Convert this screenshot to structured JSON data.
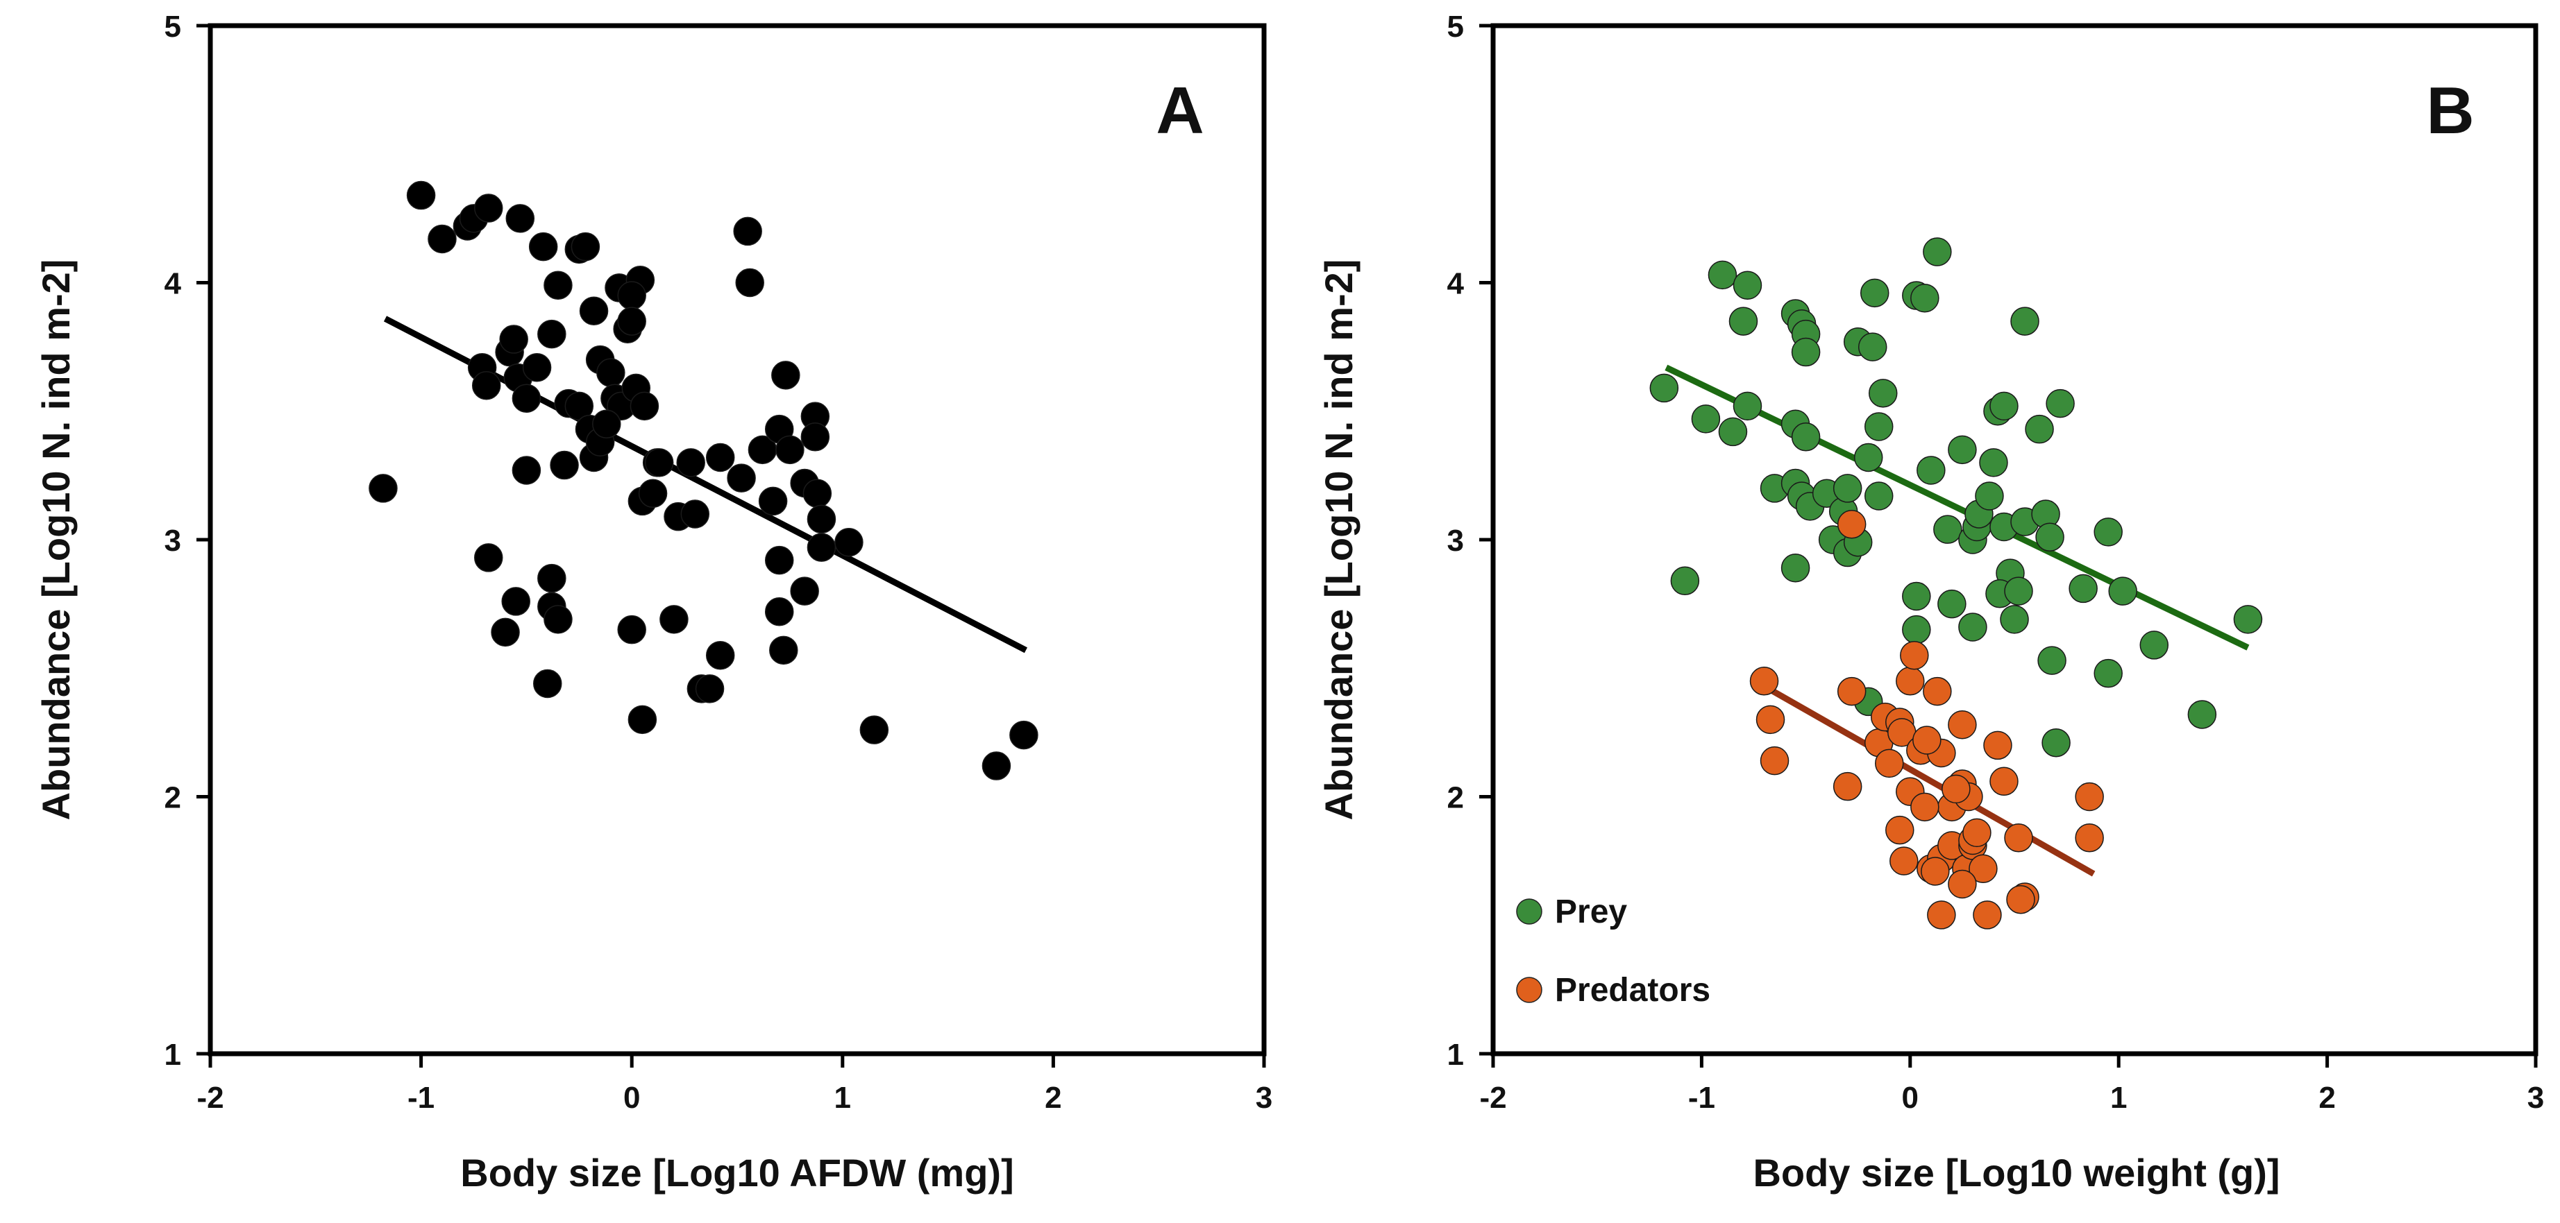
{
  "chart_data": [
    {
      "type": "scatter",
      "panel_label": "A",
      "title": "",
      "xlabel": "Body size [Log10 AFDW (mg)]",
      "ylabel": "Abundance [Log10 N. ind m-2]",
      "xlim": [
        -2,
        3
      ],
      "ylim": [
        1,
        5
      ],
      "xticks": [
        "-2",
        "-1",
        "0",
        "1",
        "2",
        "3"
      ],
      "yticks": [
        "1",
        "2",
        "3",
        "4",
        "5"
      ],
      "colors": {
        "points": "#000000",
        "line": "#000000"
      },
      "series": [
        {
          "points": [
            [
              -1.18,
              3.2
            ],
            [
              -1.0,
              4.34
            ],
            [
              -0.9,
              4.17
            ],
            [
              -0.78,
              4.22
            ],
            [
              -0.75,
              4.25
            ],
            [
              -0.68,
              4.29
            ],
            [
              -0.53,
              4.25
            ],
            [
              -0.42,
              4.14
            ],
            [
              -0.35,
              3.99
            ],
            [
              -0.38,
              3.8
            ],
            [
              -0.25,
              4.13
            ],
            [
              -0.22,
              4.14
            ],
            [
              -0.18,
              3.89
            ],
            [
              -0.06,
              3.98
            ],
            [
              -0.02,
              3.82
            ],
            [
              0.04,
              4.01
            ],
            [
              0.55,
              4.2
            ],
            [
              0.56,
              4.0
            ],
            [
              -0.71,
              3.67
            ],
            [
              -0.69,
              3.6
            ],
            [
              -0.58,
              3.73
            ],
            [
              -0.56,
              3.78
            ],
            [
              -0.54,
              3.63
            ],
            [
              -0.5,
              3.55
            ],
            [
              -0.45,
              3.67
            ],
            [
              -0.3,
              3.53
            ],
            [
              -0.25,
              3.52
            ],
            [
              -0.2,
              3.43
            ],
            [
              -0.15,
              3.7
            ],
            [
              -0.1,
              3.65
            ],
            [
              -0.08,
              3.55
            ],
            [
              -0.05,
              3.52
            ],
            [
              0.0,
              3.95
            ],
            [
              0.0,
              3.85
            ],
            [
              0.02,
              3.59
            ],
            [
              0.06,
              3.52
            ],
            [
              -0.18,
              3.32
            ],
            [
              -0.15,
              3.38
            ],
            [
              -0.12,
              3.45
            ],
            [
              0.05,
              3.15
            ],
            [
              0.1,
              3.18
            ],
            [
              0.12,
              3.3
            ],
            [
              0.22,
              3.09
            ],
            [
              0.28,
              3.3
            ],
            [
              0.3,
              3.1
            ],
            [
              0.42,
              3.32
            ],
            [
              0.52,
              3.24
            ],
            [
              0.62,
              3.35
            ],
            [
              0.67,
              3.15
            ],
            [
              0.7,
              3.43
            ],
            [
              0.73,
              3.64
            ],
            [
              0.75,
              3.35
            ],
            [
              0.82,
              3.22
            ],
            [
              0.87,
              3.48
            ],
            [
              0.87,
              3.4
            ],
            [
              0.88,
              3.18
            ],
            [
              0.9,
              3.08
            ],
            [
              0.9,
              2.97
            ],
            [
              0.82,
              2.8
            ],
            [
              1.03,
              2.99
            ],
            [
              0.7,
              2.92
            ],
            [
              0.7,
              2.72
            ],
            [
              0.72,
              2.57
            ],
            [
              -0.68,
              2.93
            ],
            [
              -0.55,
              2.76
            ],
            [
              -0.6,
              2.64
            ],
            [
              -0.38,
              2.85
            ],
            [
              -0.38,
              2.74
            ],
            [
              -0.35,
              2.69
            ],
            [
              -0.5,
              3.27
            ],
            [
              -0.4,
              2.44
            ],
            [
              0.0,
              2.65
            ],
            [
              0.2,
              2.69
            ],
            [
              0.05,
              2.3
            ],
            [
              0.33,
              2.42
            ],
            [
              0.37,
              2.42
            ],
            [
              0.42,
              2.55
            ],
            [
              1.15,
              2.26
            ],
            [
              1.73,
              2.12
            ],
            [
              1.86,
              2.24
            ],
            [
              -0.32,
              3.29
            ],
            [
              0.13,
              3.3
            ]
          ]
        }
      ],
      "trendline": {
        "x": [
          -1.17,
          1.87
        ],
        "y": [
          3.86,
          2.57
        ]
      }
    },
    {
      "type": "scatter",
      "panel_label": "B",
      "title": "",
      "xlabel": "Body size [Log10 weight (g)]",
      "ylabel": "Abundance [Log10 N. ind m-2]",
      "xlim": [
        -2,
        3
      ],
      "ylim": [
        1,
        5
      ],
      "xticks": [
        "-2",
        "-1",
        "0",
        "1",
        "2",
        "3"
      ],
      "yticks": [
        "1",
        "2",
        "3",
        "4",
        "5"
      ],
      "legend": {
        "position": "bottom-left",
        "entries": [
          "Prey",
          "Predators"
        ]
      },
      "series": [
        {
          "name": "Prey",
          "color": "#3a8c3a",
          "line_color": "#1c6a12",
          "points": [
            [
              -1.18,
              3.59
            ],
            [
              -1.08,
              2.84
            ],
            [
              -0.98,
              3.47
            ],
            [
              -0.9,
              4.03
            ],
            [
              -0.78,
              3.99
            ],
            [
              -0.8,
              3.85
            ],
            [
              -0.78,
              3.52
            ],
            [
              -0.85,
              3.42
            ],
            [
              -0.65,
              3.2
            ],
            [
              -0.55,
              3.88
            ],
            [
              -0.52,
              3.84
            ],
            [
              -0.5,
              3.8
            ],
            [
              -0.5,
              3.73
            ],
            [
              -0.55,
              3.45
            ],
            [
              -0.5,
              3.4
            ],
            [
              -0.55,
              3.22
            ],
            [
              -0.52,
              3.17
            ],
            [
              -0.48,
              3.13
            ],
            [
              -0.4,
              3.18
            ],
            [
              -0.55,
              2.89
            ],
            [
              -0.37,
              3.0
            ],
            [
              -0.32,
              3.11
            ],
            [
              -0.3,
              3.2
            ],
            [
              -0.3,
              2.95
            ],
            [
              -0.25,
              2.99
            ],
            [
              -0.25,
              3.77
            ],
            [
              -0.18,
              3.75
            ],
            [
              -0.17,
              3.96
            ],
            [
              -0.2,
              3.32
            ],
            [
              -0.15,
              3.44
            ],
            [
              -0.13,
              3.57
            ],
            [
              -0.15,
              3.17
            ],
            [
              0.03,
              3.95
            ],
            [
              0.07,
              3.94
            ],
            [
              0.13,
              4.12
            ],
            [
              0.1,
              3.27
            ],
            [
              0.18,
              3.04
            ],
            [
              0.2,
              2.75
            ],
            [
              0.25,
              3.35
            ],
            [
              0.3,
              3.0
            ],
            [
              0.32,
              3.05
            ],
            [
              0.33,
              3.1
            ],
            [
              0.38,
              3.17
            ],
            [
              0.4,
              3.3
            ],
            [
              0.42,
              3.5
            ],
            [
              0.45,
              3.52
            ],
            [
              0.45,
              3.05
            ],
            [
              0.48,
              2.87
            ],
            [
              0.5,
              2.69
            ],
            [
              0.43,
              2.79
            ],
            [
              0.52,
              2.8
            ],
            [
              0.55,
              3.85
            ],
            [
              0.55,
              3.07
            ],
            [
              0.62,
              3.43
            ],
            [
              0.65,
              3.1
            ],
            [
              0.67,
              3.01
            ],
            [
              0.68,
              2.53
            ],
            [
              0.72,
              3.53
            ],
            [
              0.7,
              2.21
            ],
            [
              0.83,
              2.81
            ],
            [
              0.95,
              2.48
            ],
            [
              0.95,
              3.03
            ],
            [
              1.02,
              2.8
            ],
            [
              1.17,
              2.59
            ],
            [
              1.4,
              2.32
            ],
            [
              1.62,
              2.69
            ],
            [
              0.03,
              2.78
            ],
            [
              0.03,
              2.65
            ],
            [
              -0.2,
              2.37
            ],
            [
              0.3,
              2.66
            ]
          ],
          "trendline": {
            "x": [
              -1.17,
              1.62
            ],
            "y": [
              3.67,
              2.58
            ]
          }
        },
        {
          "name": "Predators",
          "color": "#e0601c",
          "line_color": "#963212",
          "points": [
            [
              -0.28,
              3.06
            ],
            [
              -0.7,
              2.45
            ],
            [
              -0.67,
              2.3
            ],
            [
              -0.65,
              2.14
            ],
            [
              -0.28,
              2.41
            ],
            [
              -0.3,
              2.04
            ],
            [
              -0.15,
              2.21
            ],
            [
              -0.12,
              2.31
            ],
            [
              -0.1,
              2.13
            ],
            [
              -0.05,
              2.29
            ],
            [
              -0.04,
              2.25
            ],
            [
              0.0,
              2.45
            ],
            [
              0.02,
              2.55
            ],
            [
              0.0,
              2.02
            ],
            [
              -0.03,
              1.75
            ],
            [
              -0.05,
              1.87
            ],
            [
              0.05,
              2.18
            ],
            [
              0.1,
              1.72
            ],
            [
              0.13,
              2.41
            ],
            [
              0.15,
              2.17
            ],
            [
              0.15,
              1.76
            ],
            [
              0.15,
              1.54
            ],
            [
              0.2,
              1.96
            ],
            [
              0.2,
              1.81
            ],
            [
              0.25,
              2.28
            ],
            [
              0.25,
              2.05
            ],
            [
              0.27,
              1.72
            ],
            [
              0.3,
              1.81
            ],
            [
              0.3,
              1.83
            ],
            [
              0.32,
              1.86
            ],
            [
              0.35,
              1.72
            ],
            [
              0.37,
              1.54
            ],
            [
              0.42,
              2.2
            ],
            [
              0.45,
              2.06
            ],
            [
              0.52,
              1.84
            ],
            [
              0.55,
              1.61
            ],
            [
              0.53,
              1.6
            ],
            [
              0.86,
              2.0
            ],
            [
              0.86,
              1.84
            ],
            [
              0.07,
              1.96
            ],
            [
              0.12,
              1.71
            ],
            [
              0.25,
              1.66
            ],
            [
              0.28,
              2.0
            ],
            [
              0.22,
              2.03
            ],
            [
              0.08,
              2.22
            ]
          ],
          "trendline": {
            "x": [
              -0.7,
              0.88
            ],
            "y": [
              2.43,
              1.7
            ]
          }
        }
      ]
    }
  ]
}
